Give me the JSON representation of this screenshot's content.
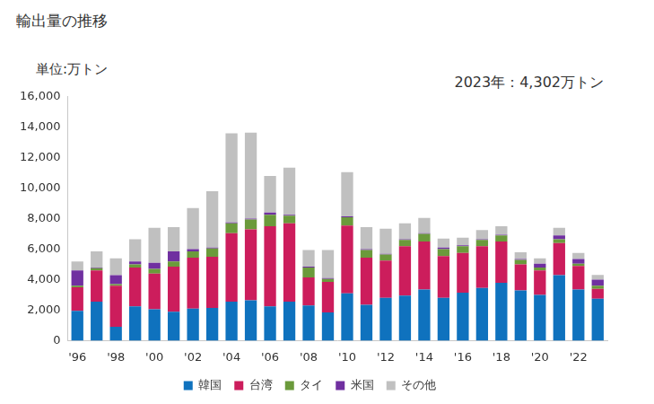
{
  "chart_data": {
    "type": "bar",
    "title": "輸出量の推移",
    "ylabel": "単位:万トン",
    "annotations": [
      "2023年：4,302万トン"
    ],
    "stacked": true,
    "grid": false,
    "legend": "bottom",
    "categories": [
      "'96",
      null,
      "'98",
      null,
      "'00",
      null,
      "'02",
      null,
      "'04",
      null,
      "'06",
      null,
      "'08",
      null,
      "'10",
      null,
      "'12",
      null,
      "'14",
      null,
      "'16",
      null,
      "'18",
      null,
      "'20",
      null,
      "'22",
      null
    ],
    "ylim": [
      0,
      16000
    ],
    "yticks": [
      0,
      {
        "value": 2000,
        "label": "2,000"
      },
      {
        "value": 4000,
        "label": "4,000"
      },
      {
        "value": 6000,
        "label": "6,000"
      },
      {
        "value": 8000,
        "label": "8,000"
      },
      {
        "value": 10000,
        "label": "10,000"
      },
      {
        "value": 12000,
        "label": "12,000"
      },
      {
        "value": 14000,
        "label": "14,000"
      },
      {
        "value": 16000,
        "label": "16,000"
      }
    ],
    "series": [
      {
        "name": "韓国",
        "color": "#0f72be",
        "values": [
          1950,
          2550,
          900,
          2250,
          2050,
          1900,
          2100,
          2150,
          2550,
          2650,
          2250,
          2550,
          2300,
          1850,
          3100,
          2350,
          2800,
          2950,
          3350,
          2800,
          3150,
          3450,
          3800,
          3300,
          3000,
          4300,
          3350,
          2750
        ]
      },
      {
        "name": "台湾",
        "color": "#cc1d5c",
        "values": [
          1550,
          2050,
          2700,
          2550,
          2350,
          2950,
          3350,
          3350,
          4500,
          4650,
          5250,
          5150,
          1850,
          2000,
          4450,
          3100,
          2450,
          3250,
          3150,
          2750,
          2600,
          2750,
          2700,
          1700,
          1600,
          2100,
          1550,
          650
        ]
      },
      {
        "name": "タイ",
        "color": "#6b9a3b",
        "values": [
          100,
          150,
          100,
          200,
          300,
          350,
          400,
          550,
          650,
          650,
          750,
          500,
          650,
          200,
          550,
          500,
          400,
          400,
          500,
          450,
          450,
          400,
          400,
          300,
          200,
          250,
          150,
          200
        ]
      },
      {
        "name": "米国",
        "color": "#7030a0",
        "values": [
          1000,
          50,
          600,
          200,
          400,
          650,
          150,
          50,
          50,
          50,
          150,
          50,
          50,
          50,
          50,
          50,
          50,
          50,
          50,
          100,
          50,
          50,
          50,
          50,
          250,
          250,
          300,
          400
        ]
      },
      {
        "name": "その他",
        "color": "#c0c0c0",
        "values": [
          600,
          1050,
          1100,
          1450,
          2300,
          1600,
          2700,
          3700,
          5850,
          5650,
          2400,
          3100,
          1100,
          1850,
          2900,
          1450,
          1650,
          1050,
          1000,
          600,
          500,
          600,
          550,
          450,
          350,
          500,
          400,
          302
        ]
      }
    ]
  }
}
